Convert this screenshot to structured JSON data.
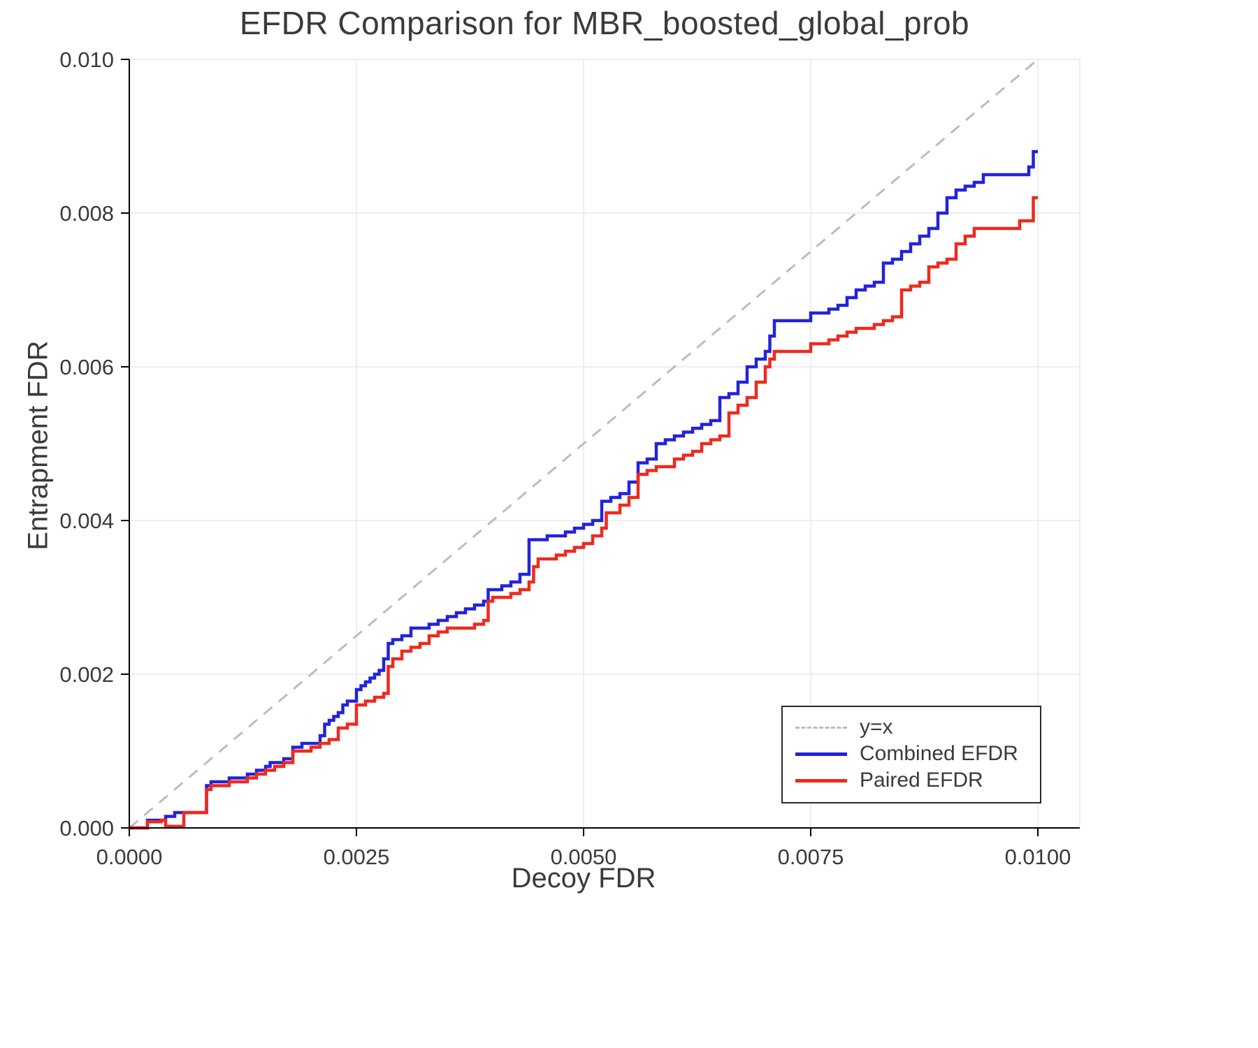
{
  "chart_data": {
    "type": "line",
    "title": "EFDR Comparison for MBR_boosted_global_prob",
    "xlabel": "Decoy FDR",
    "ylabel": "Entrapment FDR",
    "xlim": [
      0.0,
      0.01
    ],
    "ylim": [
      0.0,
      0.01
    ],
    "grid": true,
    "background": "#ffffff",
    "grid_color": "#e8e8e8",
    "spine_color": "#000000",
    "text_color": "#3a3a3a",
    "x_ticks": {
      "values": [
        0.0,
        0.0025,
        0.005,
        0.0075,
        0.01
      ],
      "labels": [
        "0.0000",
        "0.0025",
        "0.0050",
        "0.0075",
        "0.0100"
      ]
    },
    "y_ticks": {
      "values": [
        0.0,
        0.002,
        0.004,
        0.006,
        0.008,
        0.01
      ],
      "labels": [
        "0.000",
        "0.002",
        "0.004",
        "0.006",
        "0.008",
        "0.010"
      ]
    },
    "legend_position": "lower-right",
    "reference_line": {
      "label": "y=x",
      "style": "dashed",
      "color": "#bdbdbd",
      "from": [
        0.0,
        0.0
      ],
      "to": [
        0.01,
        0.01
      ]
    },
    "series": [
      {
        "name": "Combined EFDR",
        "color": "#2323d9",
        "line_width": 4.5,
        "step": "after",
        "points": [
          [
            0.0,
            0.0
          ],
          [
            0.0002,
            0.0001
          ],
          [
            0.0004,
            0.00015
          ],
          [
            0.0005,
            0.0002
          ],
          [
            0.0008,
            0.0002
          ],
          [
            0.00085,
            0.00055
          ],
          [
            0.0009,
            0.0006
          ],
          [
            0.0011,
            0.00065
          ],
          [
            0.0013,
            0.0007
          ],
          [
            0.0014,
            0.00075
          ],
          [
            0.0015,
            0.0008
          ],
          [
            0.00155,
            0.00085
          ],
          [
            0.0017,
            0.0009
          ],
          [
            0.0018,
            0.00105
          ],
          [
            0.0019,
            0.0011
          ],
          [
            0.0021,
            0.0012
          ],
          [
            0.00215,
            0.00135
          ],
          [
            0.0022,
            0.0014
          ],
          [
            0.00225,
            0.00145
          ],
          [
            0.0023,
            0.0015
          ],
          [
            0.00235,
            0.0016
          ],
          [
            0.0024,
            0.00165
          ],
          [
            0.0025,
            0.0018
          ],
          [
            0.00255,
            0.00185
          ],
          [
            0.0026,
            0.0019
          ],
          [
            0.00265,
            0.00195
          ],
          [
            0.0027,
            0.002
          ],
          [
            0.00275,
            0.00205
          ],
          [
            0.0028,
            0.0022
          ],
          [
            0.00285,
            0.0024
          ],
          [
            0.0029,
            0.00245
          ],
          [
            0.003,
            0.0025
          ],
          [
            0.0031,
            0.0026
          ],
          [
            0.0033,
            0.00265
          ],
          [
            0.0034,
            0.0027
          ],
          [
            0.0035,
            0.00275
          ],
          [
            0.0036,
            0.0028
          ],
          [
            0.0037,
            0.00285
          ],
          [
            0.0038,
            0.0029
          ],
          [
            0.0039,
            0.00295
          ],
          [
            0.00395,
            0.0031
          ],
          [
            0.0041,
            0.00315
          ],
          [
            0.0042,
            0.0032
          ],
          [
            0.0043,
            0.0033
          ],
          [
            0.0044,
            0.00375
          ],
          [
            0.0046,
            0.0038
          ],
          [
            0.0048,
            0.00385
          ],
          [
            0.0049,
            0.0039
          ],
          [
            0.005,
            0.00395
          ],
          [
            0.0051,
            0.004
          ],
          [
            0.0052,
            0.00425
          ],
          [
            0.0053,
            0.0043
          ],
          [
            0.0054,
            0.00435
          ],
          [
            0.0055,
            0.0045
          ],
          [
            0.0056,
            0.00475
          ],
          [
            0.0057,
            0.0048
          ],
          [
            0.0058,
            0.005
          ],
          [
            0.0059,
            0.00505
          ],
          [
            0.006,
            0.0051
          ],
          [
            0.0061,
            0.00515
          ],
          [
            0.0062,
            0.0052
          ],
          [
            0.0063,
            0.00525
          ],
          [
            0.0064,
            0.0053
          ],
          [
            0.0065,
            0.0056
          ],
          [
            0.0066,
            0.00565
          ],
          [
            0.0067,
            0.0058
          ],
          [
            0.0068,
            0.006
          ],
          [
            0.0069,
            0.0061
          ],
          [
            0.007,
            0.0062
          ],
          [
            0.00705,
            0.0064
          ],
          [
            0.0071,
            0.0066
          ],
          [
            0.0074,
            0.0066
          ],
          [
            0.0075,
            0.0067
          ],
          [
            0.0077,
            0.00675
          ],
          [
            0.0078,
            0.0068
          ],
          [
            0.0079,
            0.0069
          ],
          [
            0.008,
            0.007
          ],
          [
            0.0081,
            0.00705
          ],
          [
            0.0082,
            0.0071
          ],
          [
            0.0083,
            0.00735
          ],
          [
            0.0084,
            0.0074
          ],
          [
            0.0085,
            0.0075
          ],
          [
            0.0086,
            0.0076
          ],
          [
            0.0087,
            0.0077
          ],
          [
            0.0088,
            0.0078
          ],
          [
            0.0089,
            0.008
          ],
          [
            0.009,
            0.0082
          ],
          [
            0.0091,
            0.0083
          ],
          [
            0.0092,
            0.00835
          ],
          [
            0.0093,
            0.0084
          ],
          [
            0.0094,
            0.0085
          ],
          [
            0.0098,
            0.0085
          ],
          [
            0.0099,
            0.0086
          ],
          [
            0.00995,
            0.0088
          ],
          [
            0.01,
            0.0088
          ]
        ]
      },
      {
        "name": "Paired EFDR",
        "color": "#ed2a1f",
        "line_width": 4.5,
        "step": "after",
        "points": [
          [
            0.0,
            0.0
          ],
          [
            0.0002,
            8e-05
          ],
          [
            0.00035,
            0.0001
          ],
          [
            0.0004,
            2e-05
          ],
          [
            0.0006,
            0.0002
          ],
          [
            0.0008,
            0.0002
          ],
          [
            0.00085,
            0.0005
          ],
          [
            0.0009,
            0.00055
          ],
          [
            0.0011,
            0.0006
          ],
          [
            0.0013,
            0.00065
          ],
          [
            0.0014,
            0.0007
          ],
          [
            0.0015,
            0.00075
          ],
          [
            0.0016,
            0.0008
          ],
          [
            0.0017,
            0.00085
          ],
          [
            0.0018,
            0.001
          ],
          [
            0.002,
            0.00105
          ],
          [
            0.0021,
            0.0011
          ],
          [
            0.0022,
            0.00115
          ],
          [
            0.0023,
            0.0013
          ],
          [
            0.0024,
            0.00135
          ],
          [
            0.0025,
            0.0016
          ],
          [
            0.0026,
            0.00165
          ],
          [
            0.0027,
            0.0017
          ],
          [
            0.0028,
            0.00175
          ],
          [
            0.00285,
            0.0021
          ],
          [
            0.0029,
            0.0022
          ],
          [
            0.003,
            0.0023
          ],
          [
            0.0031,
            0.00235
          ],
          [
            0.0032,
            0.0024
          ],
          [
            0.0033,
            0.0025
          ],
          [
            0.0034,
            0.00255
          ],
          [
            0.0035,
            0.0026
          ],
          [
            0.0038,
            0.00265
          ],
          [
            0.0039,
            0.0027
          ],
          [
            0.00395,
            0.00295
          ],
          [
            0.004,
            0.003
          ],
          [
            0.0042,
            0.00305
          ],
          [
            0.0043,
            0.0031
          ],
          [
            0.0044,
            0.0032
          ],
          [
            0.00445,
            0.0034
          ],
          [
            0.0045,
            0.0035
          ],
          [
            0.0047,
            0.00355
          ],
          [
            0.0048,
            0.0036
          ],
          [
            0.0049,
            0.00365
          ],
          [
            0.005,
            0.0037
          ],
          [
            0.0051,
            0.0038
          ],
          [
            0.0052,
            0.0039
          ],
          [
            0.00525,
            0.0041
          ],
          [
            0.0054,
            0.0042
          ],
          [
            0.0055,
            0.0043
          ],
          [
            0.0056,
            0.0046
          ],
          [
            0.0057,
            0.00465
          ],
          [
            0.0058,
            0.0047
          ],
          [
            0.006,
            0.0048
          ],
          [
            0.0061,
            0.00485
          ],
          [
            0.0062,
            0.0049
          ],
          [
            0.0063,
            0.005
          ],
          [
            0.0064,
            0.00505
          ],
          [
            0.0065,
            0.0051
          ],
          [
            0.0066,
            0.0054
          ],
          [
            0.0067,
            0.0055
          ],
          [
            0.0068,
            0.0056
          ],
          [
            0.0069,
            0.0058
          ],
          [
            0.007,
            0.006
          ],
          [
            0.00705,
            0.0061
          ],
          [
            0.0071,
            0.0062
          ],
          [
            0.0074,
            0.0062
          ],
          [
            0.0075,
            0.0063
          ],
          [
            0.0077,
            0.00635
          ],
          [
            0.0078,
            0.0064
          ],
          [
            0.0079,
            0.00645
          ],
          [
            0.008,
            0.0065
          ],
          [
            0.0082,
            0.00655
          ],
          [
            0.0083,
            0.0066
          ],
          [
            0.0084,
            0.00665
          ],
          [
            0.0085,
            0.007
          ],
          [
            0.0086,
            0.00705
          ],
          [
            0.0087,
            0.0071
          ],
          [
            0.0088,
            0.0073
          ],
          [
            0.0089,
            0.00735
          ],
          [
            0.009,
            0.0074
          ],
          [
            0.0091,
            0.0076
          ],
          [
            0.0092,
            0.0077
          ],
          [
            0.0093,
            0.0078
          ],
          [
            0.0097,
            0.0078
          ],
          [
            0.0098,
            0.0079
          ],
          [
            0.0099,
            0.0079
          ],
          [
            0.00995,
            0.0082
          ],
          [
            0.01,
            0.0082
          ]
        ]
      }
    ]
  }
}
